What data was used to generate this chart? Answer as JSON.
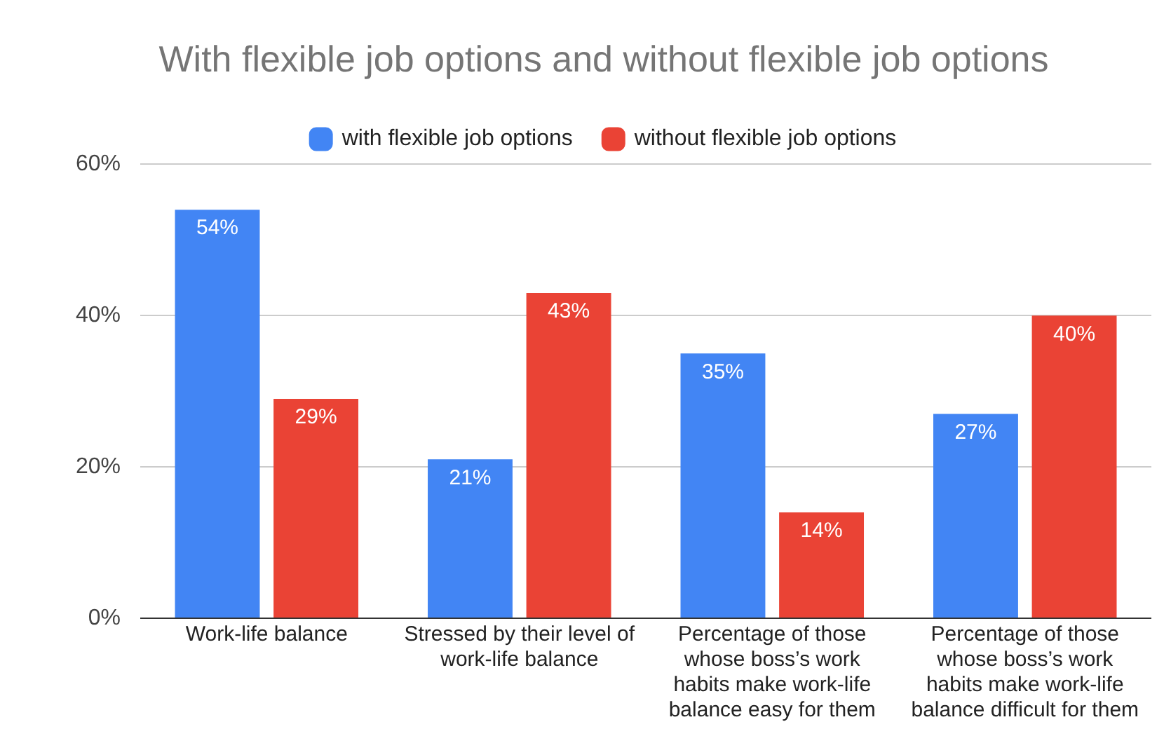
{
  "chart_data": {
    "type": "bar",
    "title": "With flexible job options and without flexible job options",
    "categories": [
      "Work-life balance",
      "Stressed by their level of work-life balance",
      "Percentage of those whose boss’s work habits make work-life balance easy for them",
      "Percentage of those whose boss’s work habits make work-life balance difficult for them"
    ],
    "series": [
      {
        "name": "with flexible job options",
        "color": "#4285f4",
        "values": [
          54,
          21,
          35,
          27
        ],
        "value_labels": [
          "54%",
          "21%",
          "35%",
          "27%"
        ]
      },
      {
        "name": "without flexible job options",
        "color": "#ea4335",
        "values": [
          29,
          43,
          14,
          40
        ],
        "value_labels": [
          "29%",
          "43%",
          "14%",
          "40%"
        ]
      }
    ],
    "ylim": [
      0,
      60
    ],
    "yticks": [
      {
        "value": 0,
        "label": "0%"
      },
      {
        "value": 20,
        "label": "20%"
      },
      {
        "value": 40,
        "label": "40%"
      },
      {
        "value": 60,
        "label": "60%"
      }
    ],
    "grid": "y",
    "legend": "top"
  }
}
